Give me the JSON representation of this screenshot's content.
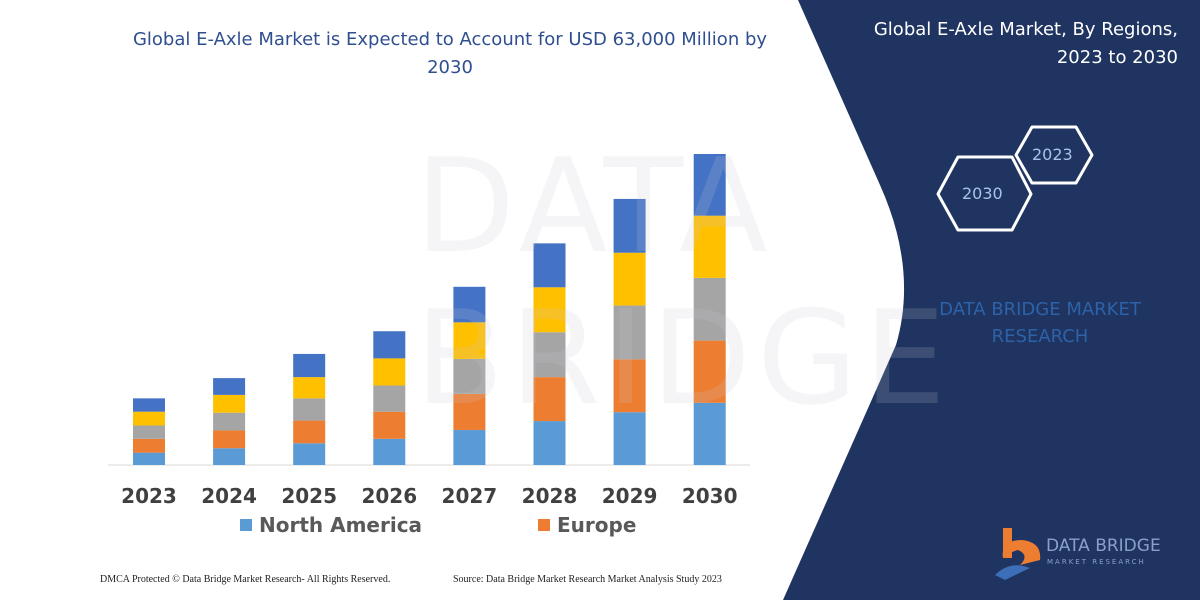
{
  "chart_data": {
    "type": "bar",
    "stacked": true,
    "title": "Global E-Axle Market is Expected to Account for USD 63,000 Million by 2030",
    "categories": [
      "2023",
      "2024",
      "2025",
      "2026",
      "2027",
      "2028",
      "2029",
      "2030"
    ],
    "series": [
      {
        "name": "North America",
        "color": "#5B9BD5",
        "values": [
          2500,
          3400,
          4400,
          5300,
          7100,
          8900,
          10700,
          12600
        ]
      },
      {
        "name": "Europe",
        "color": "#ED7D31",
        "values": [
          2800,
          3600,
          4600,
          5500,
          7300,
          8900,
          10700,
          12600
        ]
      },
      {
        "color": "#A5A5A5",
        "values": [
          2700,
          3600,
          4500,
          5300,
          7100,
          9100,
          10900,
          12700
        ]
      },
      {
        "color": "#FFC000",
        "values": [
          2800,
          3600,
          4300,
          5500,
          7400,
          9100,
          10700,
          12600
        ]
      },
      {
        "color": "#4472C4",
        "values": [
          2700,
          3400,
          4700,
          5500,
          7200,
          8900,
          10900,
          12500
        ]
      }
    ],
    "xlabel": "",
    "ylabel": "",
    "y_axis_visible": false,
    "grid": false,
    "legend_placement": "bottom"
  },
  "side_panel": {
    "title_line1": "Global E-Axle Market, By Regions,",
    "title_line2": "2023 to 2030",
    "hex_start": "2023",
    "hex_end": "2030",
    "brand_line1": "DATA BRIDGE MARKET",
    "brand_line2": "RESEARCH",
    "background": "#1F3461"
  },
  "logo": {
    "name": "DATA BRIDGE",
    "sub": "MARKET RESEARCH"
  },
  "footer": {
    "copyright": "DMCA Protected © Data Bridge Market Research-  All Rights Reserved.",
    "source": "Source: Data Bridge Market Research  Market Analysis Study 2023"
  }
}
